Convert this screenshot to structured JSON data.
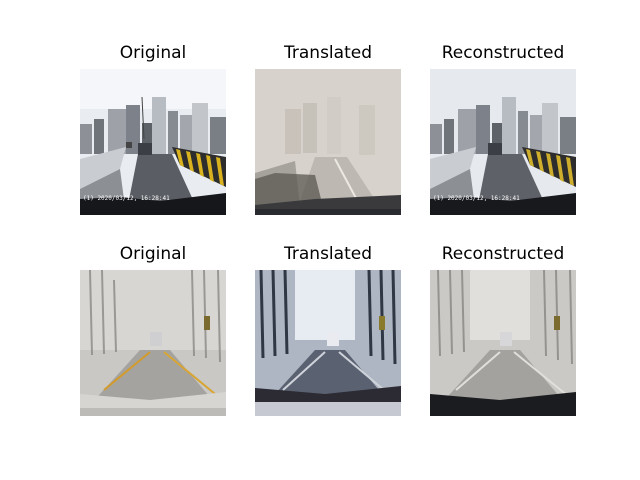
{
  "panels": [
    {
      "title": "Original",
      "scene": "city-bridge-clear",
      "timestamp": "(1) 2020/03/12, 16:28:41"
    },
    {
      "title": "Translated",
      "scene": "city-bridge-foggy"
    },
    {
      "title": "Reconstructed",
      "scene": "city-bridge-clear",
      "timestamp": "(1) 2020/03/12, 16:28:41"
    },
    {
      "title": "Original",
      "scene": "tree-road-foggy"
    },
    {
      "title": "Translated",
      "scene": "tree-road-clear"
    },
    {
      "title": "Reconstructed",
      "scene": "tree-road-foggy"
    }
  ]
}
